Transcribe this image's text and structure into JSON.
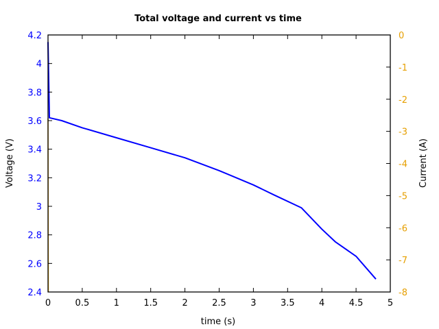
{
  "chart_data": {
    "type": "line",
    "title": "Total voltage and current vs time",
    "xlabel": "time (s)",
    "ylabel": "Voltage (V)",
    "y2label": "Current (A)",
    "xlim": [
      0,
      5
    ],
    "ylim": [
      2.4,
      4.2
    ],
    "y2lim": [
      -8,
      0
    ],
    "grid": false,
    "legend": null,
    "x_ticks": [
      "0",
      "0.5",
      "1",
      "1.5",
      "2",
      "2.5",
      "3",
      "3.5",
      "4",
      "4.5",
      "5"
    ],
    "y_ticks": [
      "2.4",
      "2.6",
      "2.8",
      "3",
      "3.2",
      "3.4",
      "3.6",
      "3.8",
      "4",
      "4.2"
    ],
    "y2_ticks": [
      "-8",
      "-7",
      "-6",
      "-5",
      "-4",
      "-3",
      "-2",
      "-1",
      "0"
    ],
    "colors": {
      "voltage": "#0000ff",
      "current": "#e69f00",
      "axis": "#000000"
    },
    "series": [
      {
        "name": "Voltage (V)",
        "axis": "left",
        "x": [
          0,
          0.02,
          0.2,
          0.5,
          1.0,
          1.5,
          2.0,
          2.5,
          3.0,
          3.3,
          3.7,
          4.0,
          4.2,
          4.5,
          4.79
        ],
        "values": [
          4.15,
          3.62,
          3.6,
          3.55,
          3.48,
          3.41,
          3.34,
          3.25,
          3.15,
          3.08,
          2.99,
          2.84,
          2.75,
          2.65,
          2.49
        ]
      },
      {
        "name": "Current (A)",
        "axis": "right",
        "x": [
          0,
          0.005
        ],
        "values": [
          -2.6,
          -8.0
        ],
        "note_visible": "vertical segment at t=0 only; remainder below axis range"
      }
    ]
  }
}
